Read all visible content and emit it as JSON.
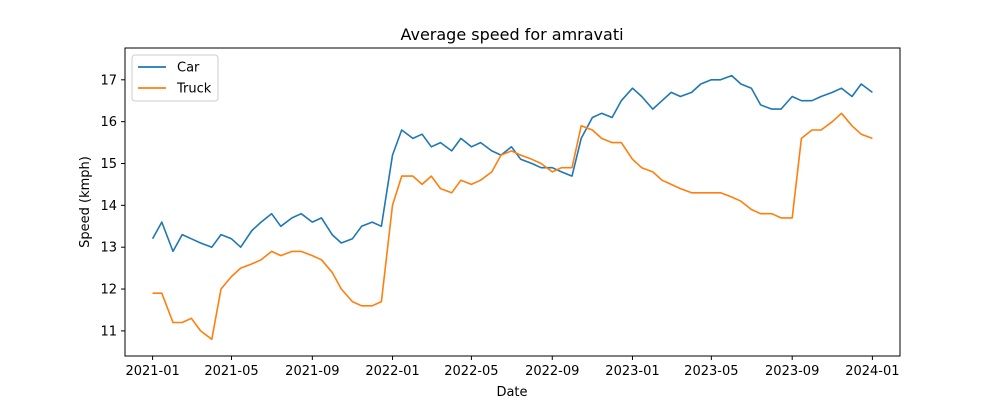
{
  "chart_data": {
    "type": "line",
    "title": "Average speed for amravati",
    "xlabel": "Date",
    "ylabel": "Speed (kmph)",
    "xlim": [
      "2020-11-20",
      "2024-02-12"
    ],
    "ylim": [
      10.4,
      17.76
    ],
    "x_ticks": [
      "2021-01",
      "2021-05",
      "2021-09",
      "2022-01",
      "2022-05",
      "2022-09",
      "2023-01",
      "2023-05",
      "2023-09",
      "2024-01"
    ],
    "y_ticks": [
      11,
      12,
      13,
      14,
      15,
      16,
      17
    ],
    "grid": false,
    "legend_placement": "top-left",
    "series": [
      {
        "name": "Car",
        "color": "#1f77b4",
        "x": [
          "2021-01-01",
          "2021-01-15",
          "2021-02-01",
          "2021-02-15",
          "2021-03-01",
          "2021-03-15",
          "2021-04-01",
          "2021-04-15",
          "2021-05-01",
          "2021-05-15",
          "2021-06-01",
          "2021-06-15",
          "2021-07-01",
          "2021-07-15",
          "2021-08-01",
          "2021-08-15",
          "2021-09-01",
          "2021-09-15",
          "2021-10-01",
          "2021-10-15",
          "2021-11-01",
          "2021-11-15",
          "2021-12-01",
          "2021-12-15",
          "2022-01-01",
          "2022-01-15",
          "2022-02-01",
          "2022-02-15",
          "2022-03-01",
          "2022-03-15",
          "2022-04-01",
          "2022-04-15",
          "2022-05-01",
          "2022-05-15",
          "2022-06-01",
          "2022-06-15",
          "2022-07-01",
          "2022-07-15",
          "2022-08-01",
          "2022-08-15",
          "2022-09-01",
          "2022-09-15",
          "2022-10-01",
          "2022-10-15",
          "2022-11-01",
          "2022-11-15",
          "2022-12-01",
          "2022-12-15",
          "2023-01-01",
          "2023-01-15",
          "2023-02-01",
          "2023-02-15",
          "2023-03-01",
          "2023-03-15",
          "2023-04-01",
          "2023-04-15",
          "2023-05-01",
          "2023-05-15",
          "2023-06-01",
          "2023-06-15",
          "2023-07-01",
          "2023-07-15",
          "2023-08-01",
          "2023-08-15",
          "2023-09-01",
          "2023-09-15",
          "2023-10-01",
          "2023-10-15",
          "2023-11-01",
          "2023-11-15",
          "2023-12-01",
          "2023-12-15",
          "2024-01-01"
        ],
        "y": [
          13.2,
          13.6,
          12.9,
          13.3,
          13.2,
          13.1,
          13.0,
          13.3,
          13.2,
          13.0,
          13.4,
          13.6,
          13.8,
          13.5,
          13.7,
          13.8,
          13.6,
          13.7,
          13.3,
          13.1,
          13.2,
          13.5,
          13.6,
          13.5,
          15.2,
          15.8,
          15.6,
          15.7,
          15.4,
          15.5,
          15.3,
          15.6,
          15.4,
          15.5,
          15.3,
          15.2,
          15.4,
          15.1,
          15.0,
          14.9,
          14.9,
          14.8,
          14.7,
          15.6,
          16.1,
          16.2,
          16.1,
          16.5,
          16.8,
          16.6,
          16.3,
          16.5,
          16.7,
          16.6,
          16.7,
          16.9,
          17.0,
          17.0,
          17.1,
          16.9,
          16.8,
          16.4,
          16.3,
          16.3,
          16.6,
          16.5,
          16.5,
          16.6,
          16.7,
          16.8,
          16.6,
          16.9,
          16.7
        ]
      },
      {
        "name": "Truck",
        "color": "#ff7f0e",
        "x": [
          "2021-01-01",
          "2021-01-15",
          "2021-02-01",
          "2021-02-15",
          "2021-03-01",
          "2021-03-15",
          "2021-04-01",
          "2021-04-15",
          "2021-05-01",
          "2021-05-15",
          "2021-06-01",
          "2021-06-15",
          "2021-07-01",
          "2021-07-15",
          "2021-08-01",
          "2021-08-15",
          "2021-09-01",
          "2021-09-15",
          "2021-10-01",
          "2021-10-15",
          "2021-11-01",
          "2021-11-15",
          "2021-12-01",
          "2021-12-15",
          "2022-01-01",
          "2022-01-15",
          "2022-02-01",
          "2022-02-15",
          "2022-03-01",
          "2022-03-15",
          "2022-04-01",
          "2022-04-15",
          "2022-05-01",
          "2022-05-15",
          "2022-06-01",
          "2022-06-15",
          "2022-07-01",
          "2022-07-15",
          "2022-08-01",
          "2022-08-15",
          "2022-09-01",
          "2022-09-15",
          "2022-10-01",
          "2022-10-15",
          "2022-11-01",
          "2022-11-15",
          "2022-12-01",
          "2022-12-15",
          "2023-01-01",
          "2023-01-15",
          "2023-02-01",
          "2023-02-15",
          "2023-03-01",
          "2023-03-15",
          "2023-04-01",
          "2023-04-15",
          "2023-05-01",
          "2023-05-15",
          "2023-06-01",
          "2023-06-15",
          "2023-07-01",
          "2023-07-15",
          "2023-08-01",
          "2023-08-15",
          "2023-09-01",
          "2023-09-15",
          "2023-10-01",
          "2023-10-15",
          "2023-11-01",
          "2023-11-15",
          "2023-12-01",
          "2023-12-15",
          "2024-01-01"
        ],
        "y": [
          11.9,
          11.9,
          11.2,
          11.2,
          11.3,
          11.0,
          10.8,
          12.0,
          12.3,
          12.5,
          12.6,
          12.7,
          12.9,
          12.8,
          12.9,
          12.9,
          12.8,
          12.7,
          12.4,
          12.0,
          11.7,
          11.6,
          11.6,
          11.7,
          14.0,
          14.7,
          14.7,
          14.5,
          14.7,
          14.4,
          14.3,
          14.6,
          14.5,
          14.6,
          14.8,
          15.2,
          15.3,
          15.2,
          15.1,
          15.0,
          14.8,
          14.9,
          14.9,
          15.9,
          15.8,
          15.6,
          15.5,
          15.5,
          15.1,
          14.9,
          14.8,
          14.6,
          14.5,
          14.4,
          14.3,
          14.3,
          14.3,
          14.3,
          14.2,
          14.1,
          13.9,
          13.8,
          13.8,
          13.7,
          13.7,
          15.6,
          15.8,
          15.8,
          16.0,
          16.2,
          15.9,
          15.7,
          15.6
        ]
      }
    ]
  }
}
